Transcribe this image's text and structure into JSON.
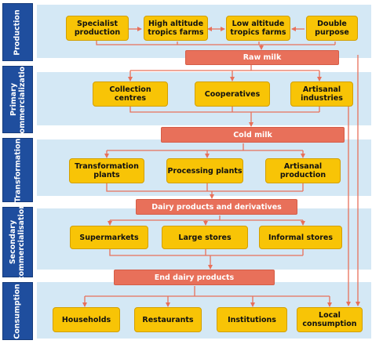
{
  "lanes": [
    {
      "lines": [
        "Production"
      ]
    },
    {
      "lines": [
        "Primary",
        "commercialization"
      ]
    },
    {
      "lines": [
        "Transformation"
      ]
    },
    {
      "lines": [
        "Secondary",
        "commercialisation"
      ]
    },
    {
      "lines": [
        "Consumption"
      ]
    }
  ],
  "production": {
    "specialist": [
      "Specialist",
      "production"
    ],
    "high_altitude": [
      "High altitude",
      "tropics farms"
    ],
    "low_altitude": [
      "Low altitude",
      "tropics farms"
    ],
    "double_purpose": [
      "Double",
      "purpose"
    ]
  },
  "bars": {
    "raw_milk": "Raw milk",
    "cold_milk": "Cold milk",
    "dairy_products": "Dairy products and derivatives",
    "end_products": "End dairy products"
  },
  "primary": {
    "collection": [
      "Collection centres"
    ],
    "cooperatives": [
      "Cooperatives"
    ],
    "artisanal_industries": [
      "Artisanal",
      "industries"
    ]
  },
  "transformation": {
    "plants": [
      "Transformation",
      "plants"
    ],
    "processing": [
      "Processing plants"
    ],
    "artisanal_production": [
      "Artisanal",
      "production"
    ]
  },
  "secondary": {
    "supermarkets": [
      "Supermarkets"
    ],
    "large_stores": [
      "Large stores"
    ],
    "informal_stores": [
      "Informal stores"
    ]
  },
  "consumption": {
    "households": [
      "Households"
    ],
    "restaurants": [
      "Restaurants"
    ],
    "institutions": [
      "Institutions"
    ],
    "local": [
      "Local",
      "consumption"
    ]
  },
  "colors": {
    "lane": "#1f4e9e",
    "band": "#d4e8f5",
    "box": "#f8c406",
    "bar": "#e8705a",
    "arrow": "#e8705a"
  }
}
